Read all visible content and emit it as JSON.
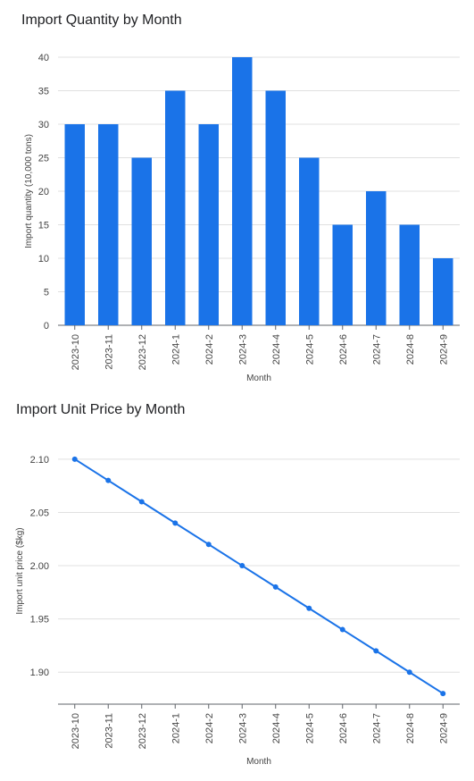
{
  "chart_data": [
    {
      "type": "bar",
      "title": "Import Quantity by Month",
      "xlabel": "Month",
      "ylabel": "Import quantity (10,000 tons)",
      "categories": [
        "2023-10",
        "2023-11",
        "2023-12",
        "2024-1",
        "2024-2",
        "2024-3",
        "2024-4",
        "2024-5",
        "2024-6",
        "2024-7",
        "2024-8",
        "2024-9"
      ],
      "values": [
        30,
        30,
        25,
        35,
        30,
        40,
        35,
        25,
        15,
        20,
        15,
        10
      ],
      "ylim": [
        0,
        40
      ],
      "yticks": [
        "0",
        "5",
        "10",
        "15",
        "20",
        "25",
        "30",
        "35",
        "40"
      ],
      "grid": true,
      "color": "#1a73e8"
    },
    {
      "type": "line",
      "title": "Import Unit Price by Month",
      "xlabel": "Month",
      "ylabel": "Import unit price ($kg)",
      "categories": [
        "2023-10",
        "2023-11",
        "2023-12",
        "2024-1",
        "2024-2",
        "2024-3",
        "2024-4",
        "2024-5",
        "2024-6",
        "2024-7",
        "2024-8",
        "2024-9"
      ],
      "values": [
        2.1,
        2.08,
        2.06,
        2.04,
        2.02,
        2.0,
        1.98,
        1.96,
        1.94,
        1.92,
        1.9,
        1.88
      ],
      "ylim": [
        1.87,
        2.12
      ],
      "yticks": [
        "1.90",
        "1.95",
        "2.00",
        "2.05",
        "2.10"
      ],
      "grid": true,
      "color": "#1a73e8"
    }
  ]
}
